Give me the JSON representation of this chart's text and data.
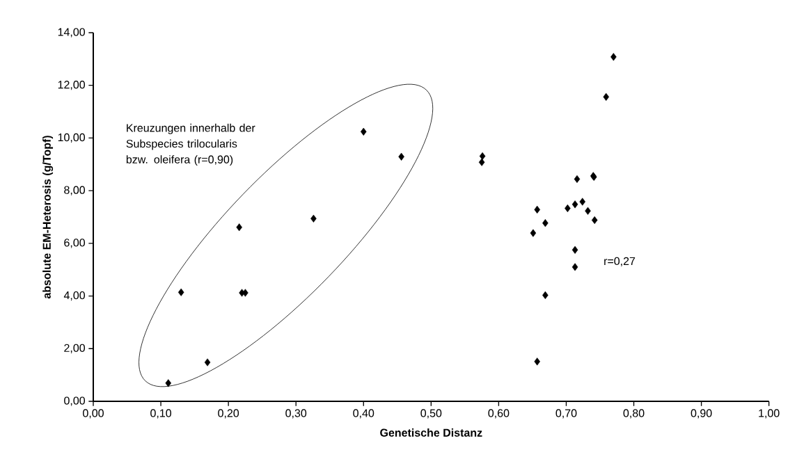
{
  "chart_data": {
    "type": "scatter",
    "xlabel": "Genetische Distanz",
    "ylabel": "absolute EM-Heterosis (g/Topf)",
    "x": [
      0.111,
      0.169,
      0.13,
      0.22,
      0.225,
      0.216,
      0.326,
      0.4,
      0.456,
      0.576,
      0.575,
      0.716,
      0.74,
      0.741,
      0.657,
      0.702,
      0.713,
      0.724,
      0.732,
      0.742,
      0.669,
      0.651,
      0.713,
      0.713,
      0.669,
      0.657,
      0.759,
      0.77
    ],
    "values": [
      0.69,
      1.48,
      4.14,
      4.12,
      4.12,
      6.61,
      6.94,
      10.24,
      9.29,
      9.31,
      9.08,
      8.44,
      8.56,
      8.52,
      7.28,
      7.33,
      7.48,
      7.58,
      7.23,
      6.88,
      6.77,
      6.39,
      5.75,
      5.1,
      4.03,
      1.51,
      11.56,
      13.08
    ],
    "color": "#000000",
    "marker": "diamond",
    "xlim": [
      0,
      1
    ],
    "ylim": [
      0,
      14
    ],
    "xticks": [
      {
        "value": 0,
        "label": "0,00"
      },
      {
        "value": 0.1,
        "label": "0,10"
      },
      {
        "value": 0.2,
        "label": "0,20"
      },
      {
        "value": 0.3,
        "label": "0,30"
      },
      {
        "value": 0.4,
        "label": "0,40"
      },
      {
        "value": 0.5,
        "label": "0,50"
      },
      {
        "value": 0.6,
        "label": "0,60"
      },
      {
        "value": 0.7,
        "label": "0,70"
      },
      {
        "value": 0.8,
        "label": "0,80"
      },
      {
        "value": 0.9,
        "label": "0,90"
      },
      {
        "value": 1,
        "label": "1,00"
      }
    ],
    "yticks": [
      {
        "value": 0,
        "label": "0,00"
      },
      {
        "value": 2,
        "label": "2,00"
      },
      {
        "value": 4,
        "label": "4,00"
      },
      {
        "value": 6,
        "label": "6,00"
      },
      {
        "value": 8,
        "label": "8,00"
      },
      {
        "value": 10,
        "label": "10,00"
      },
      {
        "value": 12,
        "label": "12,00"
      },
      {
        "value": 14,
        "label": "14,00"
      }
    ],
    "annotations": [
      "Kreuzungen innerhalb der Subspecies trilocularis bzw. oleifera (r=0,90)",
      "r=0,27"
    ]
  }
}
